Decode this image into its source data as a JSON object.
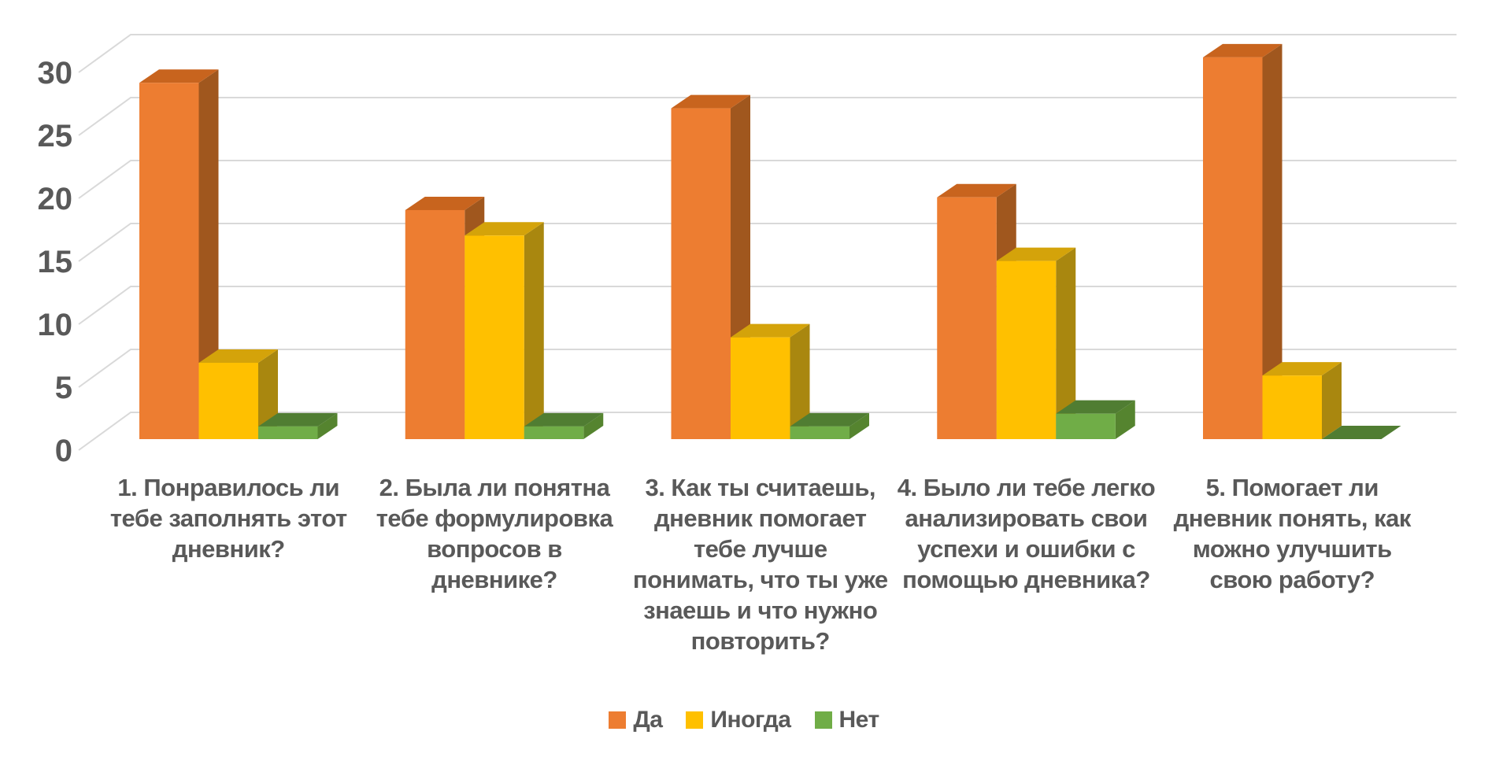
{
  "chart_data": {
    "type": "bar",
    "subtype": "3d-clustered-column",
    "title": "",
    "xlabel": "",
    "ylabel": "",
    "categories": [
      "1. Понравилось ли тебе заполнять этот дневник?",
      "2. Была ли понятна тебе формулировка вопросов в дневнике?",
      "3. Как ты считаешь, дневник помогает тебе лучше понимать, что ты уже знаешь и что нужно повторить?",
      "4. Было ли тебе легко анализировать свои успехи и ошибки с помощью дневника?",
      "5. Помогает ли дневник понять, как можно улучшить свою работу?"
    ],
    "series": [
      {
        "name": "Да",
        "values": [
          28,
          18,
          26,
          19,
          30
        ],
        "color_front": "#ED7D31",
        "color_top": "#C8641E",
        "color_side": "#A0571E"
      },
      {
        "name": "Иногда",
        "values": [
          6,
          16,
          8,
          14,
          5
        ],
        "color_front": "#FFC000",
        "color_top": "#D4A30A",
        "color_side": "#A9870F"
      },
      {
        "name": "Нет",
        "values": [
          1,
          1,
          1,
          2,
          0
        ],
        "color_front": "#70AD47",
        "color_top": "#507D32",
        "color_side": "#55842F"
      }
    ],
    "yticks": [
      0,
      5,
      10,
      15,
      20,
      25,
      30
    ],
    "ylim": [
      0,
      30
    ],
    "grid": true,
    "legend_position": "bottom",
    "colors": {
      "text": "#595959",
      "gridline": "#D9D9D9",
      "background": "#FFFFFF"
    }
  }
}
